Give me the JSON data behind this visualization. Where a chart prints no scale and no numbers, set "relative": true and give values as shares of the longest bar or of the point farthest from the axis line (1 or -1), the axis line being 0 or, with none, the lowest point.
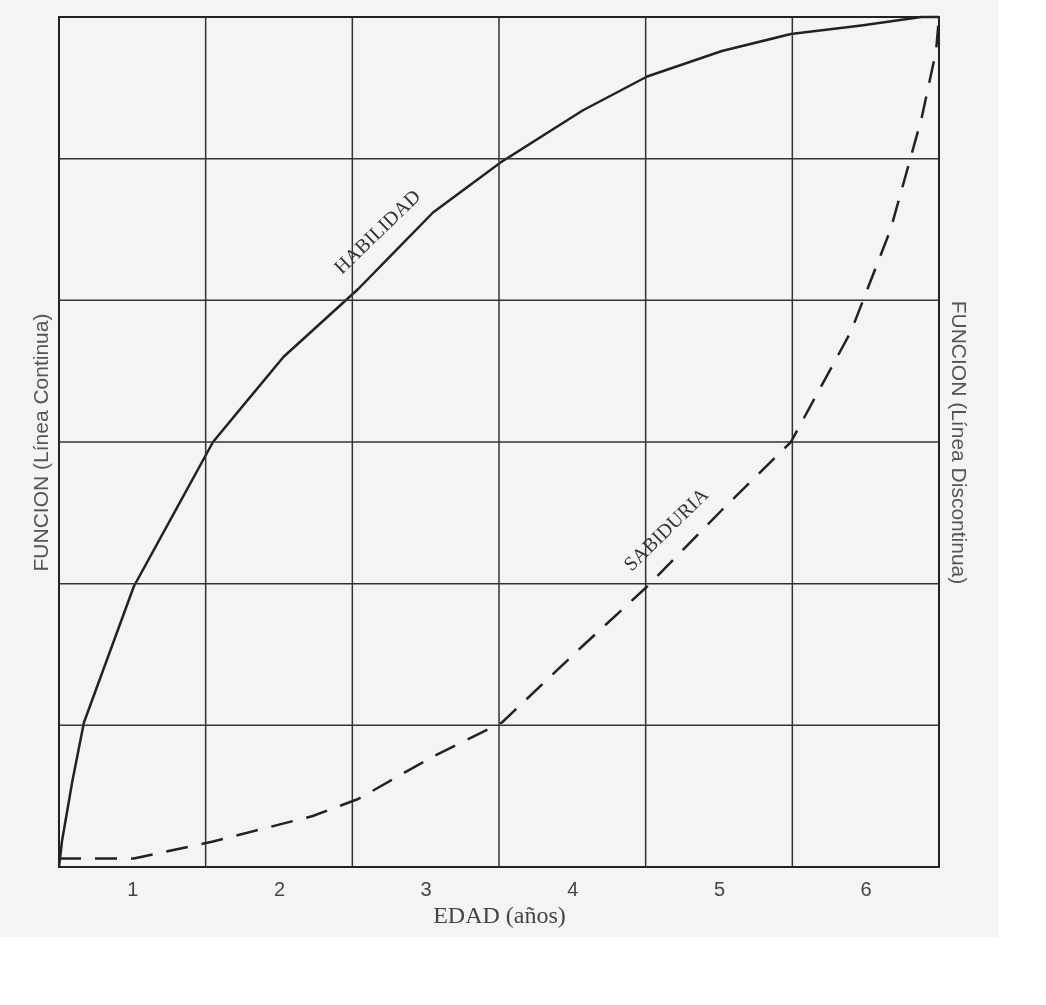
{
  "chart_data": {
    "type": "line",
    "relative": true,
    "xlabel": "EDAD (años)",
    "ylabel": "FUNCION (Línea Continua)",
    "y2label": "FUNCION (Línea Discontinua)",
    "xlim": [
      0.5,
      6.5
    ],
    "xticks": [
      1,
      2,
      3,
      4,
      5,
      6,
      {
        "value": 1.5,
        "label": null
      },
      {
        "value": 2.5,
        "label": null
      },
      {
        "value": 3.5,
        "label": null
      },
      {
        "value": 4.5,
        "label": null
      },
      {
        "value": 5.5,
        "label": null
      }
    ],
    "grid": true,
    "legend": false,
    "marker": "none",
    "series": [
      {
        "name": "HABILIDAD",
        "color": "#222222",
        "line_style": "solid",
        "x": [
          0.5,
          0.52,
          0.59,
          0.67,
          1.01,
          1.55,
          2.03,
          2.54,
          3.05,
          3.52,
          4.07,
          4.51,
          5.02,
          5.49,
          5.97,
          6.38,
          6.5
        ],
        "values": [
          0,
          0.03,
          0.1,
          0.17,
          0.33,
          0.5,
          0.6,
          0.68,
          0.77,
          0.83,
          0.89,
          0.93,
          0.96,
          0.98,
          0.99,
          1.0,
          1.0
        ]
      },
      {
        "name": "SABIDURIA",
        "color": "#222222",
        "line_style": "dashed",
        "axis": "y2",
        "x": [
          0.5,
          1.01,
          1.55,
          2.23,
          2.54,
          3.05,
          3.52,
          4.07,
          4.51,
          5.02,
          5.49,
          5.9,
          6.17,
          6.38,
          6.48,
          6.5
        ],
        "values": [
          0.01,
          0.01,
          0.03,
          0.06,
          0.08,
          0.13,
          0.17,
          0.26,
          0.33,
          0.42,
          0.5,
          0.63,
          0.75,
          0.88,
          0.96,
          1.0
        ]
      }
    ]
  }
}
